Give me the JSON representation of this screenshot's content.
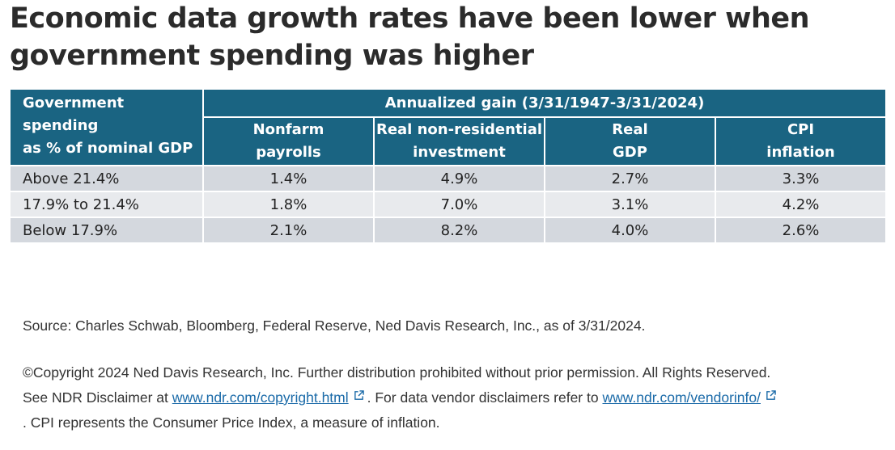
{
  "chart_data": {
    "type": "table",
    "title": "Economic data growth rates have been lower when government spending was higher",
    "row_header": "Government spending as % of nominal GDP",
    "group_header": "Annualized gain (3/31/1947-3/31/2024)",
    "columns": [
      "Nonfarm payrolls",
      "Real non-residential investment",
      "Real GDP",
      "CPI inflation"
    ],
    "rows": [
      {
        "label": "Above 21.4%",
        "values": [
          "1.4%",
          "4.9%",
          "2.7%",
          "3.3%"
        ]
      },
      {
        "label": "17.9% to 21.4%",
        "values": [
          "1.8%",
          "7.0%",
          "3.1%",
          "4.2%"
        ]
      },
      {
        "label": "Below 17.9%",
        "values": [
          "2.1%",
          "8.2%",
          "4.0%",
          "2.6%"
        ]
      }
    ]
  },
  "header": {
    "row_header_line1": "Government spending",
    "row_header_line2": "as % of nominal GDP",
    "columns": [
      {
        "line1": "Nonfarm",
        "line2": "payrolls"
      },
      {
        "line1": "Real non-residential",
        "line2": "investment"
      },
      {
        "line1": "Real",
        "line2": "GDP"
      },
      {
        "line1": "CPI",
        "line2": "inflation"
      }
    ]
  },
  "footer": {
    "source": "Source: Charles Schwab, Bloomberg, Federal Reserve, Ned Davis Research, Inc., as of 3/31/2024.",
    "copyright": "©Copyright 2024 Ned Davis Research, Inc. Further distribution prohibited without prior permission. All Rights Reserved.",
    "disclaimer_prefix": "See NDR Disclaimer at",
    "link1": "www.ndr.com/copyright.html",
    "disclaimer_middle": ". For data vendor disclaimers refer to",
    "link2": "www.ndr.com/vendorinfo/",
    "cpi_note": ". CPI represents the Consumer Price Index, a measure of inflation."
  },
  "colors": {
    "header_bg": "#1a6482",
    "row_shade_a": "#d4d8de",
    "row_shade_b": "#e8eaed",
    "link": "#1a6aa8"
  },
  "icons": {
    "external_link": "external-link-icon"
  }
}
